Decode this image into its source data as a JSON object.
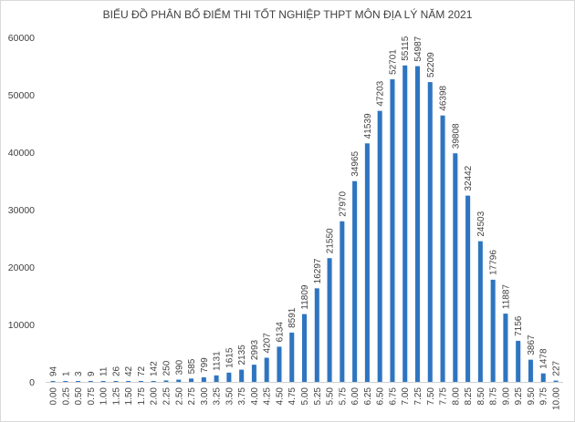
{
  "chart_data": {
    "type": "bar",
    "title": "BIỂU ĐỒ PHÂN BỐ ĐIỂM THI TỐT NGHIỆP THPT MÔN ĐỊA LÝ NĂM 2021",
    "xlabel": "",
    "ylabel": "",
    "ylim": [
      0,
      60000
    ],
    "yticks": [
      "0",
      "10000",
      "20000",
      "30000",
      "40000",
      "50000",
      "60000"
    ],
    "grid": false,
    "bar_color": "#2e75c0",
    "categories": [
      "0.00",
      "0.25",
      "0.50",
      "0.75",
      "1.00",
      "1.25",
      "1.50",
      "1.75",
      "2.00",
      "2.25",
      "2.50",
      "2.75",
      "3.00",
      "3.25",
      "3.50",
      "3.75",
      "4.00",
      "4.25",
      "4.50",
      "4.75",
      "5.00",
      "5.25",
      "5.50",
      "5.75",
      "6.00",
      "6.25",
      "6.50",
      "6.75",
      "7.00",
      "7.25",
      "7.50",
      "7.75",
      "8.00",
      "8.25",
      "8.50",
      "8.75",
      "9.00",
      "9.25",
      "9.50",
      "9.75",
      "10.00"
    ],
    "values": [
      94,
      1,
      3,
      9,
      11,
      26,
      42,
      72,
      142,
      250,
      390,
      585,
      799,
      1131,
      1615,
      2135,
      2993,
      4207,
      6134,
      8591,
      11809,
      16297,
      21550,
      27970,
      34965,
      41539,
      47203,
      52701,
      55115,
      54987,
      52209,
      46398,
      39808,
      32442,
      24503,
      17796,
      11887,
      7156,
      3867,
      1478,
      227
    ]
  }
}
